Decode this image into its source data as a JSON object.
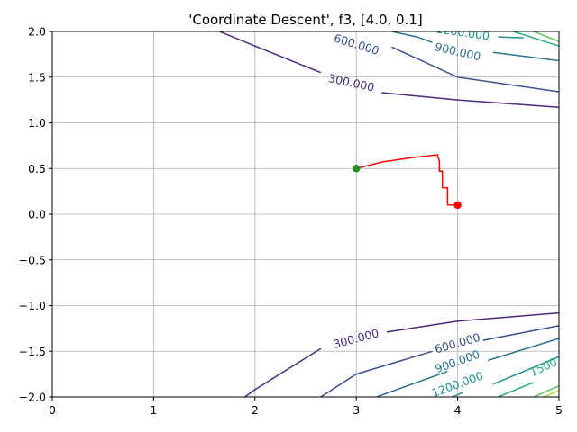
{
  "chart_data": {
    "type": "line",
    "title": "'Coordinate Descent', f3, [4.0, 0.1]",
    "xlabel": "",
    "ylabel": "",
    "xlim": [
      0,
      5
    ],
    "ylim": [
      -2.0,
      2.0
    ],
    "grid": true,
    "x_ticks": [
      "0",
      "1",
      "2",
      "3",
      "4",
      "5"
    ],
    "y_ticks": [
      "2.0",
      "1.5",
      "1.0",
      "0.5",
      "0.0",
      "−0.5",
      "−1.0",
      "−1.5",
      "−2.0"
    ],
    "contours": [
      {
        "level": 300,
        "color": "#472c7a",
        "segments": [
          [
            [
              1.65,
              2.0
            ],
            [
              2.0,
              1.84
            ],
            [
              2.65,
              1.55
            ]
          ],
          [
            [
              3.25,
              1.33
            ],
            [
              4.0,
              1.25
            ],
            [
              5.0,
              1.17
            ]
          ],
          [
            [
              2.65,
              -1.47
            ],
            [
              2.0,
              -1.92
            ],
            [
              1.9,
              -2.0
            ]
          ],
          [
            [
              3.3,
              -1.29
            ],
            [
              4.0,
              -1.17
            ],
            [
              5.0,
              -1.08
            ]
          ]
        ]
      },
      {
        "level": 600,
        "color": "#3b518b",
        "segments": [
          [
            [
              3.35,
              1.83
            ],
            [
              4.0,
              1.5
            ],
            [
              5.0,
              1.34
            ]
          ],
          [
            [
              4.25,
              -1.38
            ],
            [
              5.0,
              -1.22
            ]
          ],
          [
            [
              2.65,
              -2.0
            ],
            [
              3.0,
              -1.75
            ],
            [
              3.75,
              -1.5
            ]
          ]
        ]
      },
      {
        "level": 900,
        "color": "#2c718e",
        "segments": [
          [
            [
              3.35,
              2.0
            ],
            [
              3.6,
              1.94
            ],
            [
              3.75,
              1.88
            ]
          ],
          [
            [
              4.35,
              1.77
            ],
            [
              5.0,
              1.68
            ]
          ],
          [
            [
              4.3,
              -1.6
            ],
            [
              5.0,
              -1.36
            ]
          ],
          [
            [
              3.2,
              -2.0
            ],
            [
              3.9,
              -1.72
            ]
          ]
        ]
      },
      {
        "level": 1200,
        "color": "#21908d",
        "segments": [
          [
            [
              4.4,
              1.94
            ],
            [
              4.65,
              1.93
            ]
          ],
          [
            [
              4.35,
              -1.86
            ],
            [
              5.0,
              -1.56
            ]
          ],
          [
            [
              3.95,
              -2.0
            ],
            [
              4.05,
              -1.95
            ]
          ]
        ]
      },
      {
        "level": 1500,
        "color": "#27ad81",
        "segments": [
          [
            [
              4.55,
              2.0
            ],
            [
              5.0,
              1.84
            ]
          ],
          [
            [
              4.4,
              -2.0
            ],
            [
              4.75,
              -1.84
            ]
          ]
        ]
      },
      {
        "level": 1800,
        "color": "#5cc863",
        "segments": [
          [
            [
              4.75,
              2.0
            ],
            [
              5.0,
              1.89
            ]
          ],
          [
            [
              4.75,
              -2.0
            ],
            [
              5.0,
              -1.88
            ]
          ]
        ]
      },
      {
        "level": 2100,
        "color": "#aadc32",
        "segments": [
          [
            [
              5.0,
              -2.0
            ],
            [
              5.0,
              -2.0
            ]
          ],
          [
            [
              4.85,
              -2.0
            ],
            [
              5.0,
              -1.93
            ]
          ]
        ]
      }
    ],
    "contour_labels": [
      {
        "text": "600.000",
        "x": 3.0,
        "y": 1.85,
        "angle": 17,
        "color": "#3b518b"
      },
      {
        "text": "300.000",
        "x": 2.95,
        "y": 1.43,
        "angle": 12,
        "color": "#472c7a"
      },
      {
        "text": "900.000",
        "x": 4.0,
        "y": 1.77,
        "angle": 13,
        "color": "#2c718e"
      },
      {
        "text": "1200.000",
        "x": 4.05,
        "y": 1.98,
        "angle": 8,
        "color": "#21908d"
      },
      {
        "text": "300.000",
        "x": 3.0,
        "y": -1.37,
        "angle": -15,
        "color": "#472c7a"
      },
      {
        "text": "600.000",
        "x": 4.0,
        "y": -1.42,
        "angle": -16,
        "color": "#3b518b"
      },
      {
        "text": "900.000",
        "x": 4.0,
        "y": -1.62,
        "angle": -20,
        "color": "#2c718e"
      },
      {
        "text": "1200.000",
        "x": 4.0,
        "y": -1.87,
        "angle": -20,
        "color": "#21908d"
      },
      {
        "text": "1500",
        "x": 4.85,
        "y": -1.68,
        "angle": -25,
        "color": "#27ad81"
      }
    ],
    "series": [
      {
        "color": "#ff0000",
        "x": [
          4.0,
          3.9,
          3.9,
          3.85,
          3.85,
          3.82,
          3.82,
          3.8,
          3.55,
          3.25,
          3.0
        ],
        "y": [
          0.1,
          0.1,
          0.29,
          0.29,
          0.47,
          0.47,
          0.58,
          0.65,
          0.62,
          0.57,
          0.5
        ]
      }
    ],
    "points": [
      {
        "x": 4.0,
        "y": 0.1,
        "color": "#ff0000"
      },
      {
        "x": 3.0,
        "y": 0.5,
        "color": "#228b22"
      }
    ]
  }
}
